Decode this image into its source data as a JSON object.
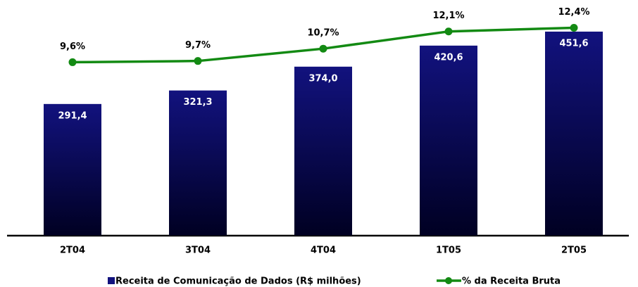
{
  "chart_data": {
    "type": "combo",
    "categories": [
      "2T04",
      "3T04",
      "4T04",
      "1T05",
      "2T05"
    ],
    "series": [
      {
        "name": "Receita de Comunicação de Dados (R$ milhões)",
        "type": "bar",
        "color": "#12127e",
        "values": [
          291.4,
          321.3,
          374.0,
          420.6,
          451.6
        ],
        "value_labels": [
          "291,4",
          "321,3",
          "374,0",
          "420,6",
          "451,6"
        ]
      },
      {
        "name": "% da Receita Bruta",
        "type": "line",
        "axis": "y2",
        "color": "#138a13",
        "values": [
          9.6,
          9.7,
          10.7,
          12.1,
          12.4
        ],
        "value_labels": [
          "9,6%",
          "9,7%",
          "10,7%",
          "12,1%",
          "12,4%"
        ]
      }
    ],
    "ylim": [
      0,
      520
    ],
    "y2lim": [
      -4.5,
      14.6
    ]
  }
}
